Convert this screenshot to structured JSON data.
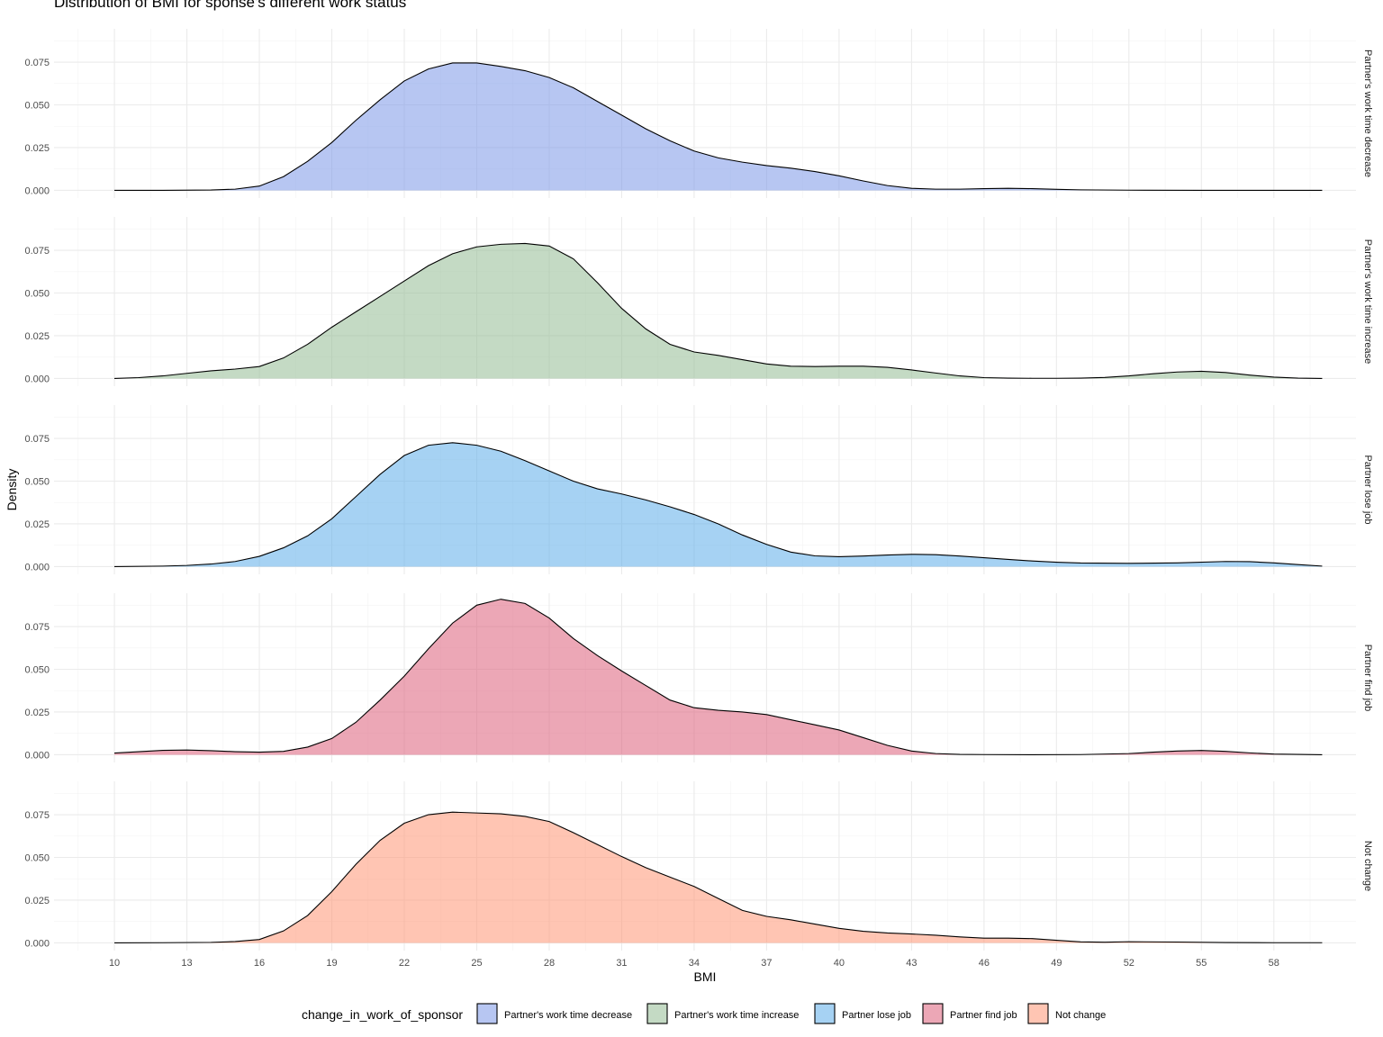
{
  "chart_data": {
    "type": "area",
    "title": "Distribution of BMI for sponse's different work status",
    "xlabel": "BMI",
    "ylabel": "Density",
    "xlim": [
      7.5,
      61.4
    ],
    "ylim": [
      -0.0045,
      0.0945
    ],
    "x_ticks": [
      10,
      13,
      16,
      19,
      22,
      25,
      28,
      31,
      34,
      37,
      40,
      43,
      46,
      49,
      52,
      55,
      58
    ],
    "y_ticks": [
      0.0,
      0.025,
      0.05,
      0.075
    ],
    "y_tick_labels": [
      "0.000",
      "0.025",
      "0.050",
      "0.075"
    ],
    "grid": true,
    "legend_placement": "bottom",
    "legend_title": "change_in_work_of_sponsor",
    "facets": "rows",
    "series": [
      {
        "name": "Partner's work time decrease",
        "color": "#7b98e8",
        "x": [
          10,
          12,
          14,
          15,
          16,
          17,
          18,
          19,
          20,
          21,
          22,
          23,
          24,
          25,
          26,
          27,
          28,
          29,
          30,
          31,
          32,
          33,
          34,
          35,
          36,
          37,
          38,
          39,
          40,
          41,
          42,
          43,
          44,
          45,
          46,
          47,
          48,
          49,
          50,
          52,
          55,
          58,
          60
        ],
        "values": [
          0.0,
          0.0,
          0.0002,
          0.0007,
          0.0025,
          0.008,
          0.017,
          0.028,
          0.041,
          0.053,
          0.064,
          0.071,
          0.0745,
          0.0745,
          0.0725,
          0.07,
          0.066,
          0.06,
          0.052,
          0.044,
          0.036,
          0.029,
          0.023,
          0.019,
          0.0165,
          0.0145,
          0.013,
          0.011,
          0.0085,
          0.0055,
          0.0028,
          0.0012,
          0.0007,
          0.0007,
          0.001,
          0.0012,
          0.001,
          0.0006,
          0.0003,
          0.0001,
          0.0,
          0.0,
          0.0
        ]
      },
      {
        "name": "Partner's work time increase",
        "color": "#94bb93",
        "x": [
          10,
          11,
          12,
          13,
          14,
          15,
          16,
          17,
          18,
          19,
          20,
          21,
          22,
          23,
          24,
          25,
          26,
          27,
          28,
          29,
          30,
          31,
          32,
          33,
          34,
          35,
          36,
          37,
          38,
          39,
          40,
          41,
          42,
          43,
          44,
          45,
          46,
          47,
          48,
          49,
          50,
          51,
          52,
          53,
          54,
          55,
          56,
          57,
          58,
          59,
          60
        ],
        "values": [
          0.0,
          0.0005,
          0.0015,
          0.003,
          0.0045,
          0.0055,
          0.007,
          0.012,
          0.02,
          0.03,
          0.039,
          0.048,
          0.057,
          0.066,
          0.073,
          0.077,
          0.0785,
          0.079,
          0.0775,
          0.07,
          0.056,
          0.041,
          0.029,
          0.02,
          0.0155,
          0.0135,
          0.011,
          0.0085,
          0.0072,
          0.007,
          0.0072,
          0.0072,
          0.0065,
          0.005,
          0.0032,
          0.0015,
          0.0005,
          0.0002,
          0.0001,
          0.0001,
          0.0002,
          0.0006,
          0.0015,
          0.0028,
          0.0038,
          0.0042,
          0.0035,
          0.002,
          0.0008,
          0.0002,
          0.0
        ]
      },
      {
        "name": "Partner lose job",
        "color": "#5cadea",
        "x": [
          10,
          12,
          13,
          14,
          15,
          16,
          17,
          18,
          19,
          20,
          21,
          22,
          23,
          24,
          25,
          26,
          27,
          28,
          29,
          30,
          31,
          32,
          33,
          34,
          35,
          36,
          37,
          38,
          39,
          40,
          41,
          42,
          43,
          44,
          45,
          46,
          47,
          48,
          49,
          50,
          52,
          54,
          56,
          57,
          58,
          59,
          60
        ],
        "values": [
          0.0,
          0.0003,
          0.0007,
          0.0015,
          0.003,
          0.006,
          0.011,
          0.018,
          0.028,
          0.041,
          0.054,
          0.065,
          0.071,
          0.0725,
          0.071,
          0.0675,
          0.062,
          0.056,
          0.05,
          0.0455,
          0.0425,
          0.039,
          0.035,
          0.0305,
          0.025,
          0.0185,
          0.013,
          0.0085,
          0.0063,
          0.0058,
          0.0062,
          0.0068,
          0.0072,
          0.007,
          0.0062,
          0.0052,
          0.0042,
          0.0033,
          0.0026,
          0.0021,
          0.0019,
          0.0022,
          0.003,
          0.0029,
          0.0022,
          0.0012,
          0.0003
        ]
      },
      {
        "name": "Partner find job",
        "color": "#dd5f7a",
        "x": [
          10,
          11,
          12,
          13,
          14,
          15,
          16,
          17,
          18,
          19,
          20,
          21,
          22,
          23,
          24,
          25,
          26,
          27,
          28,
          29,
          30,
          31,
          32,
          33,
          34,
          35,
          36,
          37,
          38,
          39,
          40,
          41,
          42,
          43,
          44,
          45,
          46,
          48,
          50,
          52,
          53,
          54,
          55,
          56,
          57,
          58,
          60
        ],
        "values": [
          0.001,
          0.0018,
          0.0026,
          0.0028,
          0.0024,
          0.0018,
          0.0015,
          0.002,
          0.0045,
          0.0095,
          0.019,
          0.032,
          0.046,
          0.062,
          0.077,
          0.0875,
          0.091,
          0.0885,
          0.08,
          0.068,
          0.058,
          0.049,
          0.0405,
          0.032,
          0.0275,
          0.026,
          0.025,
          0.0235,
          0.0205,
          0.0175,
          0.0145,
          0.01,
          0.0055,
          0.0022,
          0.0007,
          0.0002,
          0.0001,
          0.0,
          0.0001,
          0.0007,
          0.0015,
          0.0022,
          0.0025,
          0.002,
          0.0011,
          0.0004,
          0.0
        ]
      },
      {
        "name": "Not change",
        "color": "#ff9675",
        "x": [
          10,
          12,
          14,
          15,
          16,
          17,
          18,
          19,
          20,
          21,
          22,
          23,
          24,
          25,
          26,
          27,
          28,
          29,
          30,
          31,
          32,
          33,
          34,
          35,
          36,
          37,
          38,
          39,
          40,
          41,
          42,
          43,
          44,
          45,
          46,
          47,
          48,
          49,
          50,
          51,
          52,
          54,
          56,
          58,
          60
        ],
        "values": [
          0.0,
          0.0001,
          0.0003,
          0.0008,
          0.002,
          0.007,
          0.016,
          0.03,
          0.046,
          0.06,
          0.07,
          0.075,
          0.0765,
          0.076,
          0.0755,
          0.074,
          0.071,
          0.0645,
          0.0575,
          0.0505,
          0.044,
          0.0385,
          0.033,
          0.026,
          0.019,
          0.0155,
          0.0135,
          0.011,
          0.0085,
          0.0068,
          0.0058,
          0.0052,
          0.0045,
          0.0035,
          0.0028,
          0.0028,
          0.0025,
          0.0015,
          0.0006,
          0.0004,
          0.0007,
          0.0005,
          0.0002,
          0.0001,
          0.0001
        ]
      }
    ]
  }
}
